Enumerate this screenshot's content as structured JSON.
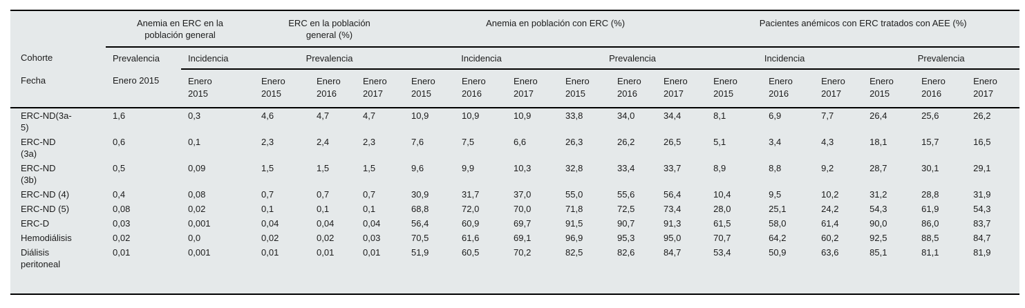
{
  "colors": {
    "table_background": "#e5e9ea",
    "rule": "#000000",
    "text": "#1b1b1b",
    "page_background": "#ffffff"
  },
  "header": {
    "row_label_header": "Cohorte",
    "date_label_header": "Fecha",
    "column_groups": [
      {
        "label": "Anemia en ERC en la\npoblación general",
        "span": 2
      },
      {
        "label": "ERC en la población\ngeneral (%)",
        "span": 3
      },
      {
        "label": "Anemia en población con ERC (%)",
        "span": 6
      },
      {
        "label": "Pacientes anémicos con ERC tratados con AEE (%)",
        "span": 6
      }
    ],
    "measures": [
      {
        "label": "Prevalencia",
        "span": 1,
        "dates": [
          "Enero 2015"
        ]
      },
      {
        "label": "Incidencia",
        "span": 1,
        "dates": [
          "Enero\n2015"
        ]
      },
      {
        "label": "Prevalencia",
        "span": 3,
        "dates": [
          "Enero\n2015",
          "Enero\n2016",
          "Enero\n2017"
        ]
      },
      {
        "label": "Incidencia",
        "span": 3,
        "dates": [
          "Enero\n2015",
          "Enero\n2016",
          "Enero\n2017"
        ]
      },
      {
        "label": "Prevalencia",
        "span": 3,
        "dates": [
          "Enero\n2015",
          "Enero\n2016",
          "Enero\n2017"
        ]
      },
      {
        "label": "Incidencia",
        "span": 3,
        "dates": [
          "Enero\n2015",
          "Enero\n2016",
          "Enero\n2017"
        ]
      },
      {
        "label": "Prevalencia",
        "span": 3,
        "dates": [
          "Enero\n2015",
          "Enero\n2016",
          "Enero\n2017"
        ]
      }
    ]
  },
  "rows": [
    {
      "label": "ERC-ND(3a-\n5)",
      "values": [
        "1,6",
        "0,3",
        "4,6",
        "4,7",
        "4,7",
        "10,9",
        "10,9",
        "10,9",
        "33,8",
        "34,0",
        "34,4",
        "8,1",
        "6,9",
        "7,7",
        "26,4",
        "25,6",
        "26,2"
      ]
    },
    {
      "label": "ERC-ND\n(3a)",
      "values": [
        "0,6",
        "0,1",
        "2,3",
        "2,4",
        "2,3",
        "7,6",
        "7,5",
        "6,6",
        "26,3",
        "26,2",
        "26,5",
        "5,1",
        "3,4",
        "4,3",
        "18,1",
        "15,7",
        "16,5"
      ]
    },
    {
      "label": "ERC-ND\n(3b)",
      "values": [
        "0,5",
        "0,09",
        "1,5",
        "1,5",
        "1,5",
        "9,6",
        "9,9",
        "10,3",
        "32,8",
        "33,4",
        "33,7",
        "8,9",
        "8,8",
        "9,2",
        "28,7",
        "30,1",
        "29,1"
      ]
    },
    {
      "label": "ERC-ND (4)",
      "values": [
        "0,4",
        "0,08",
        "0,7",
        "0,7",
        "0,7",
        "30,9",
        "31,7",
        "37,0",
        "55,0",
        "55,6",
        "56,4",
        "10,4",
        "9,5",
        "10,2",
        "31,2",
        "28,8",
        "31,9"
      ]
    },
    {
      "label": "ERC-ND (5)",
      "values": [
        "0,08",
        "0,02",
        "0,1",
        "0,1",
        "0,1",
        "68,8",
        "72,0",
        "70,0",
        "71,8",
        "72,5",
        "73,4",
        "28,0",
        "25,1",
        "24,2",
        "54,3",
        "61,9",
        "54,3"
      ]
    },
    {
      "label": "ERC-D",
      "values": [
        "0,03",
        "0,001",
        "0,04",
        "0,04",
        "0,04",
        "56,4",
        "60,9",
        "69,7",
        "91,5",
        "90,7",
        "91,3",
        "61,5",
        "58,0",
        "61,4",
        "90,0",
        "86,0",
        "83,7"
      ]
    },
    {
      "label": "Hemodiálisis",
      "values": [
        "0,02",
        "0,0",
        "0,02",
        "0,02",
        "0,03",
        "70,5",
        "61,6",
        "69,1",
        "96,9",
        "95,3",
        "95,0",
        "70,7",
        "64,2",
        "60,2",
        "92,5",
        "88,5",
        "84,7"
      ]
    },
    {
      "label": "Diálisis\nperitoneal",
      "values": [
        "0,01",
        "0,001",
        "0,01",
        "0,01",
        "0,01",
        "51,9",
        "60,5",
        "70,2",
        "82,5",
        "82,6",
        "84,7",
        "53,4",
        "50,9",
        "63,6",
        "85,1",
        "81,1",
        "81,9"
      ]
    }
  ]
}
